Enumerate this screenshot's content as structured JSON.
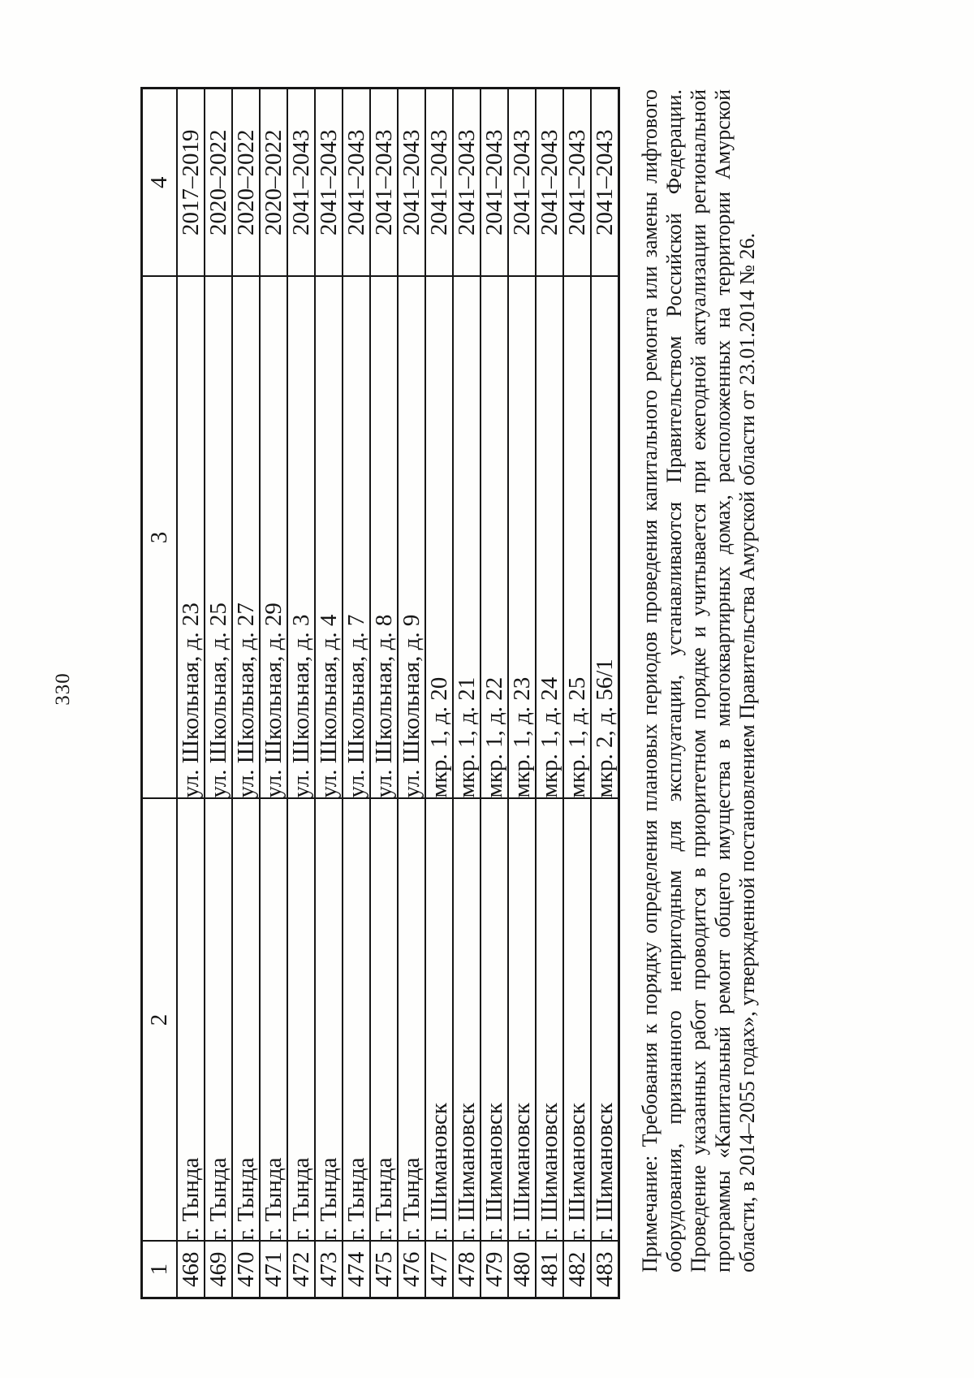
{
  "page_number": "330",
  "colors": {
    "ink": "#161616",
    "paper": "#fefefd"
  },
  "table": {
    "headers": [
      "1",
      "2",
      "3",
      "4"
    ],
    "rows": [
      {
        "num": "468",
        "city": "г. Тында",
        "address": "ул. Школьная, д. 23",
        "years": "2017–2019"
      },
      {
        "num": "469",
        "city": "г. Тында",
        "address": "ул. Школьная, д. 25",
        "years": "2020–2022"
      },
      {
        "num": "470",
        "city": "г. Тында",
        "address": "ул. Школьная, д. 27",
        "years": "2020–2022"
      },
      {
        "num": "471",
        "city": "г. Тында",
        "address": "ул. Школьная, д. 29",
        "years": "2020–2022"
      },
      {
        "num": "472",
        "city": "г. Тында",
        "address": "ул. Школьная, д. 3",
        "years": "2041–2043"
      },
      {
        "num": "473",
        "city": "г. Тында",
        "address": "ул. Школьная, д. 4",
        "years": "2041–2043"
      },
      {
        "num": "474",
        "city": "г. Тында",
        "address": "ул. Школьная, д. 7",
        "years": "2041–2043"
      },
      {
        "num": "475",
        "city": "г. Тында",
        "address": "ул. Школьная, д. 8",
        "years": "2041–2043"
      },
      {
        "num": "476",
        "city": "г. Тында",
        "address": "ул. Школьная, д. 9",
        "years": "2041–2043"
      },
      {
        "num": "477",
        "city": "г. Шимановск",
        "address": "мкр. 1, д. 20",
        "years": "2041–2043"
      },
      {
        "num": "478",
        "city": "г. Шимановск",
        "address": "мкр. 1, д. 21",
        "years": "2041–2043"
      },
      {
        "num": "479",
        "city": "г. Шимановск",
        "address": "мкр. 1, д. 22",
        "years": "2041–2043"
      },
      {
        "num": "480",
        "city": "г. Шимановск",
        "address": "мкр. 1, д. 23",
        "years": "2041–2043"
      },
      {
        "num": "481",
        "city": "г. Шимановск",
        "address": "мкр. 1, д. 24",
        "years": "2041–2043"
      },
      {
        "num": "482",
        "city": "г. Шимановск",
        "address": "мкр. 1, д. 25",
        "years": "2041–2043"
      },
      {
        "num": "483",
        "city": "г. Шимановск",
        "address": "мкр. 2, д. 56/1",
        "years": "2041–2043"
      }
    ]
  },
  "note": "Примечание: Требования к порядку определения плановых периодов проведения капитального ремонта или замены лифтового оборудования, признанного непригодным для эксплуатации, устанавливаются Правительством Российской Федерации. Проведение указанных работ проводится в приоритетном порядке и учитывается при ежегодной актуализации региональной программы «Капитальный ремонт общего имущества в многоквартирных домах, расположенных на территории Амурской области, в 2014–2055 годах», утвержденной постановлением Правительства Амурской области от 23.01.2014 № 26."
}
